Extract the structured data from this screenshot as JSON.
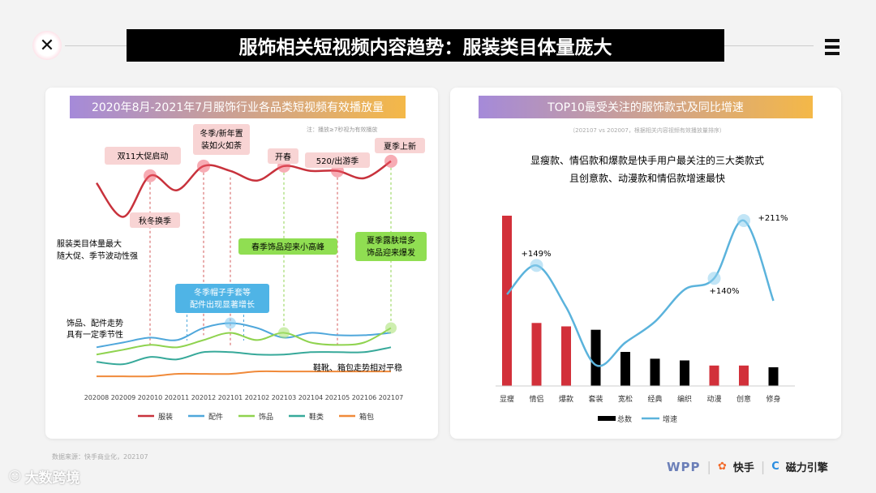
{
  "header": {
    "title": "服饰相关短视频内容趋势：服装类目体量庞大"
  },
  "left_card": {
    "title": "2020年8月-2021年7月服饰行业各品类短视频有效播放量",
    "note": "注：播放≥7秒视为有效播放",
    "events": [
      "双11大促启动",
      "冬季/新年置",
      "装如火如荼",
      "开春",
      "520/出游季",
      "夏季上新",
      "秋冬换季"
    ],
    "side_labels": [
      "服装类目体量最大",
      "随大促、季节波动性强",
      "饰品、配件走势",
      "具有一定季节性",
      "鞋靴、箱包走势相对平稳"
    ],
    "callouts": [
      "春季饰品迎来小高峰",
      "夏季露肤增多",
      "饰品迎来爆发",
      "冬季帽子手套等",
      "配件出现显著增长"
    ]
  },
  "right_card": {
    "title": "TOP10最受关注的服饰款式及同比增速",
    "subtitle": "（202107 vs 202007，根据相关内容视频有效播放量排序）",
    "headline_1": "显瘦款、情侣款和爆款是快手用户最关注的三大类款式",
    "headline_2": "且创意款、动漫款和情侣款增速最快",
    "growth_labels": [
      "+149%",
      "+140%",
      "+211%"
    ]
  },
  "footer": {
    "source": "数据来源：快手商业化，202107",
    "logo_wpp": "WPP",
    "logo_kuaishou": "快手",
    "logo_cili": "磁力引擎",
    "watermark": "大数跨境"
  },
  "chart_data": [
    {
      "type": "line",
      "title": "2020年8月-2021年7月服饰行业各品类短视频有效播放量",
      "x": [
        "202008",
        "202009",
        "202010",
        "202011",
        "202012",
        "202101",
        "202102",
        "202103",
        "202104",
        "202105",
        "202106",
        "202107"
      ],
      "ylim": [
        0,
        100
      ],
      "legend_position": "bottom",
      "series": [
        {
          "name": "服装",
          "color": "#c8323c",
          "values": [
            84,
            70,
            87,
            81,
            91,
            89,
            85,
            91,
            89,
            89,
            86,
            93
          ]
        },
        {
          "name": "配件",
          "color": "#4fa7db",
          "values": [
            16,
            18,
            20,
            19,
            24,
            26,
            24,
            20,
            22,
            21,
            21,
            22
          ]
        },
        {
          "name": "饰品",
          "color": "#8fd34f",
          "values": [
            13,
            15,
            17,
            16,
            19,
            22,
            19,
            22,
            18,
            17,
            18,
            24
          ]
        },
        {
          "name": "鞋类",
          "color": "#37a99a",
          "values": [
            10,
            9,
            12,
            11,
            14,
            14,
            13,
            13,
            14,
            14,
            14,
            16
          ]
        },
        {
          "name": "箱包",
          "color": "#f08a3a",
          "values": [
            4,
            4,
            4,
            5,
            5,
            5,
            6,
            6,
            6,
            6,
            6,
            6
          ]
        }
      ]
    },
    {
      "type": "bar",
      "title": "TOP10最受关注的服饰款式及同比增速",
      "categories": [
        "显瘦",
        "情侣",
        "爆款",
        "套装",
        "宽松",
        "经典",
        "编织",
        "动漫",
        "创意",
        "修身"
      ],
      "legend_position": "bottom",
      "series": [
        {
          "name": "总数",
          "kind": "bar",
          "values": [
            100,
            37,
            35,
            33,
            20,
            16,
            15,
            12,
            12,
            11
          ],
          "colors": [
            "#d2303a",
            "#d2303a",
            "#d2303a",
            "#000000",
            "#000000",
            "#000000",
            "#000000",
            "#d2303a",
            "#d2303a",
            "#000000"
          ]
        },
        {
          "name": "增速",
          "kind": "line",
          "color": "#5bb3dc",
          "values": [
            52,
            70,
            44,
            8,
            22,
            35,
            55,
            62,
            98,
            48
          ]
        }
      ],
      "annotations": [
        {
          "category": "情侣",
          "label": "+149%"
        },
        {
          "category": "动漫",
          "label": "+140%"
        },
        {
          "category": "创意",
          "label": "+211%"
        }
      ]
    }
  ]
}
